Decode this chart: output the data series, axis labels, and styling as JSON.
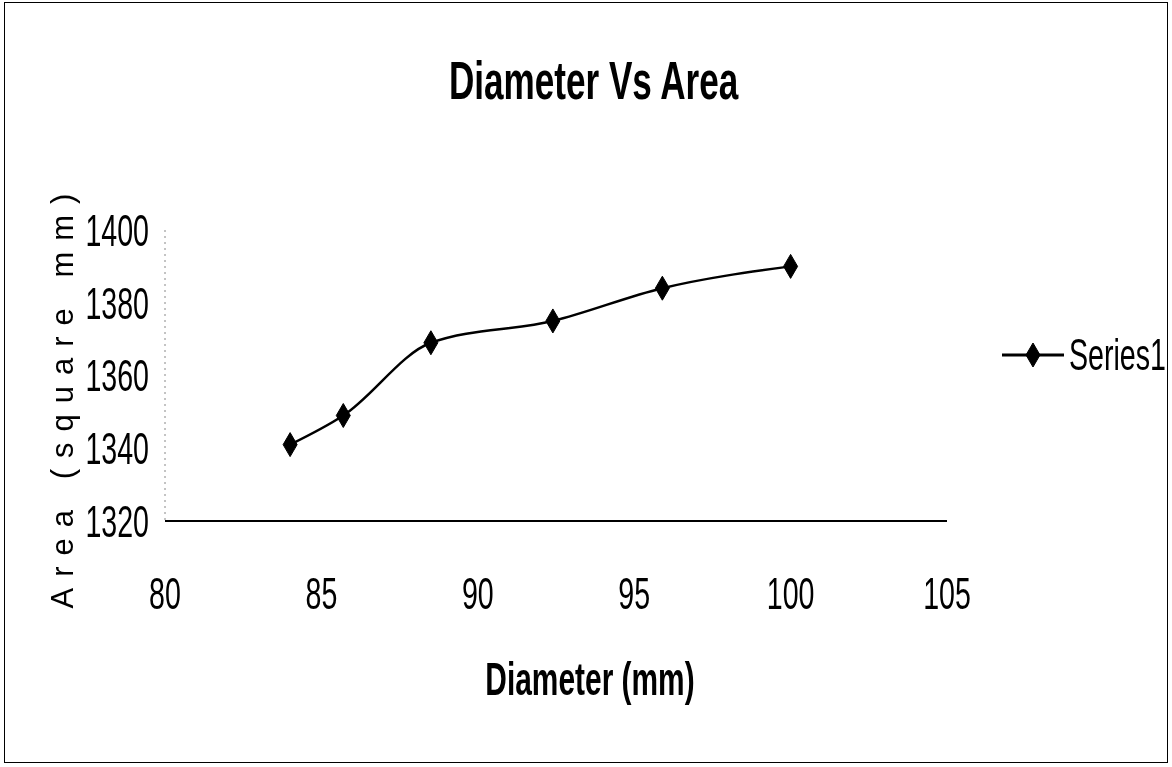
{
  "chart_data": {
    "type": "line",
    "title": "Diameter Vs Area",
    "xlabel": "Diameter (mm)",
    "ylabel": "Area (square mm)",
    "x": [
      84,
      85.7,
      88.5,
      92.4,
      95.9,
      100
    ],
    "series": [
      {
        "name": "Series1",
        "color": "#000000",
        "values": [
          1341,
          1349,
          1369,
          1375,
          1384,
          1390
        ]
      }
    ],
    "xlim": [
      80,
      105
    ],
    "xticks": [
      80,
      85,
      90,
      95,
      100,
      105
    ],
    "ylim": [
      1320,
      1400
    ],
    "yticks": [
      1320,
      1340,
      1360,
      1380,
      1400
    ],
    "legend": "right",
    "marker": "diamond",
    "line_style": "solid"
  }
}
